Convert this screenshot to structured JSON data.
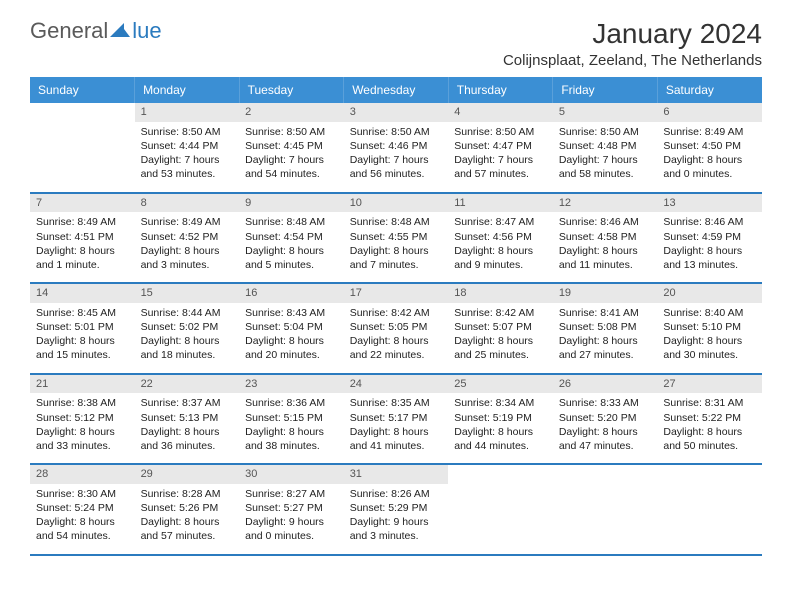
{
  "logo": {
    "part1": "General",
    "part2": "lue"
  },
  "title": "January 2024",
  "location": "Colijnsplaat, Zeeland, The Netherlands",
  "colors": {
    "header_bg": "#3b8fd4",
    "accent": "#2b7bbf",
    "daynum_bg": "#e8e8e8",
    "text": "#222222",
    "logo_gray": "#5a5a5a"
  },
  "weekdays": [
    "Sunday",
    "Monday",
    "Tuesday",
    "Wednesday",
    "Thursday",
    "Friday",
    "Saturday"
  ],
  "weeks": [
    [
      null,
      {
        "n": 1,
        "sr": "8:50 AM",
        "ss": "4:44 PM",
        "dl": "7 hours and 53 minutes."
      },
      {
        "n": 2,
        "sr": "8:50 AM",
        "ss": "4:45 PM",
        "dl": "7 hours and 54 minutes."
      },
      {
        "n": 3,
        "sr": "8:50 AM",
        "ss": "4:46 PM",
        "dl": "7 hours and 56 minutes."
      },
      {
        "n": 4,
        "sr": "8:50 AM",
        "ss": "4:47 PM",
        "dl": "7 hours and 57 minutes."
      },
      {
        "n": 5,
        "sr": "8:50 AM",
        "ss": "4:48 PM",
        "dl": "7 hours and 58 minutes."
      },
      {
        "n": 6,
        "sr": "8:49 AM",
        "ss": "4:50 PM",
        "dl": "8 hours and 0 minutes."
      }
    ],
    [
      {
        "n": 7,
        "sr": "8:49 AM",
        "ss": "4:51 PM",
        "dl": "8 hours and 1 minute."
      },
      {
        "n": 8,
        "sr": "8:49 AM",
        "ss": "4:52 PM",
        "dl": "8 hours and 3 minutes."
      },
      {
        "n": 9,
        "sr": "8:48 AM",
        "ss": "4:54 PM",
        "dl": "8 hours and 5 minutes."
      },
      {
        "n": 10,
        "sr": "8:48 AM",
        "ss": "4:55 PM",
        "dl": "8 hours and 7 minutes."
      },
      {
        "n": 11,
        "sr": "8:47 AM",
        "ss": "4:56 PM",
        "dl": "8 hours and 9 minutes."
      },
      {
        "n": 12,
        "sr": "8:46 AM",
        "ss": "4:58 PM",
        "dl": "8 hours and 11 minutes."
      },
      {
        "n": 13,
        "sr": "8:46 AM",
        "ss": "4:59 PM",
        "dl": "8 hours and 13 minutes."
      }
    ],
    [
      {
        "n": 14,
        "sr": "8:45 AM",
        "ss": "5:01 PM",
        "dl": "8 hours and 15 minutes."
      },
      {
        "n": 15,
        "sr": "8:44 AM",
        "ss": "5:02 PM",
        "dl": "8 hours and 18 minutes."
      },
      {
        "n": 16,
        "sr": "8:43 AM",
        "ss": "5:04 PM",
        "dl": "8 hours and 20 minutes."
      },
      {
        "n": 17,
        "sr": "8:42 AM",
        "ss": "5:05 PM",
        "dl": "8 hours and 22 minutes."
      },
      {
        "n": 18,
        "sr": "8:42 AM",
        "ss": "5:07 PM",
        "dl": "8 hours and 25 minutes."
      },
      {
        "n": 19,
        "sr": "8:41 AM",
        "ss": "5:08 PM",
        "dl": "8 hours and 27 minutes."
      },
      {
        "n": 20,
        "sr": "8:40 AM",
        "ss": "5:10 PM",
        "dl": "8 hours and 30 minutes."
      }
    ],
    [
      {
        "n": 21,
        "sr": "8:38 AM",
        "ss": "5:12 PM",
        "dl": "8 hours and 33 minutes."
      },
      {
        "n": 22,
        "sr": "8:37 AM",
        "ss": "5:13 PM",
        "dl": "8 hours and 36 minutes."
      },
      {
        "n": 23,
        "sr": "8:36 AM",
        "ss": "5:15 PM",
        "dl": "8 hours and 38 minutes."
      },
      {
        "n": 24,
        "sr": "8:35 AM",
        "ss": "5:17 PM",
        "dl": "8 hours and 41 minutes."
      },
      {
        "n": 25,
        "sr": "8:34 AM",
        "ss": "5:19 PM",
        "dl": "8 hours and 44 minutes."
      },
      {
        "n": 26,
        "sr": "8:33 AM",
        "ss": "5:20 PM",
        "dl": "8 hours and 47 minutes."
      },
      {
        "n": 27,
        "sr": "8:31 AM",
        "ss": "5:22 PM",
        "dl": "8 hours and 50 minutes."
      }
    ],
    [
      {
        "n": 28,
        "sr": "8:30 AM",
        "ss": "5:24 PM",
        "dl": "8 hours and 54 minutes."
      },
      {
        "n": 29,
        "sr": "8:28 AM",
        "ss": "5:26 PM",
        "dl": "8 hours and 57 minutes."
      },
      {
        "n": 30,
        "sr": "8:27 AM",
        "ss": "5:27 PM",
        "dl": "9 hours and 0 minutes."
      },
      {
        "n": 31,
        "sr": "8:26 AM",
        "ss": "5:29 PM",
        "dl": "9 hours and 3 minutes."
      },
      null,
      null,
      null
    ]
  ],
  "labels": {
    "sunrise": "Sunrise:",
    "sunset": "Sunset:",
    "daylight": "Daylight:"
  }
}
